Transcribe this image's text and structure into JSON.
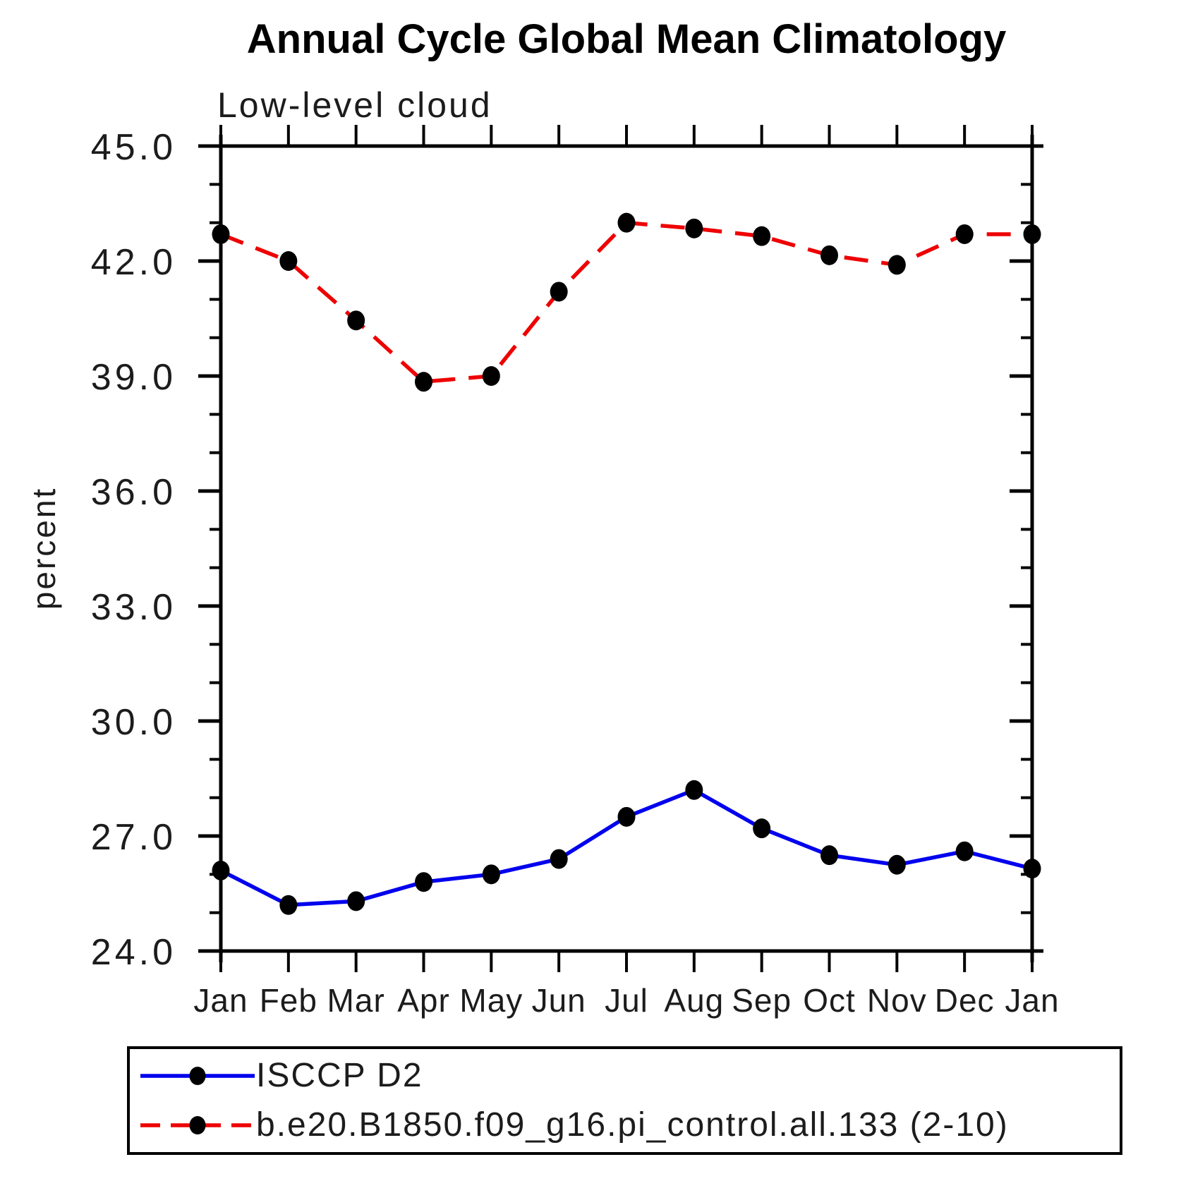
{
  "chart_data": {
    "type": "line",
    "title": "Annual Cycle Global Mean Climatology",
    "subtitle": "Low-level cloud",
    "xlabel": "",
    "ylabel": "percent",
    "x_tick_labels": [
      "Jan",
      "Feb",
      "Mar",
      "Apr",
      "May",
      "Jun",
      "Jul",
      "Aug",
      "Sep",
      "Oct",
      "Nov",
      "Dec",
      "Jan"
    ],
    "ylim": [
      24.0,
      45.0
    ],
    "y_major_ticks": [
      24.0,
      27.0,
      30.0,
      33.0,
      36.0,
      39.0,
      42.0,
      45.0
    ],
    "y_major_tick_labels": [
      "24.0",
      "27.0",
      "30.0",
      "33.0",
      "36.0",
      "39.0",
      "42.0",
      "45.0"
    ],
    "y_minor_tick_interval": 1.0,
    "grid": false,
    "legend_position": "bottom-left-box",
    "axis_color": "#000000",
    "marker_color": "#000000",
    "series": [
      {
        "name": "ISCCP D2",
        "color": "#0000ee",
        "line_style": "solid",
        "marker": "circle",
        "values": [
          26.1,
          25.2,
          25.3,
          25.8,
          26.0,
          26.4,
          27.5,
          28.2,
          27.2,
          26.5,
          26.25,
          26.6,
          26.15
        ]
      },
      {
        "name": "b.e20.B1850.f09_g16.pi_control.all.133 (2-10)",
        "color": "#ee0000",
        "line_style": "dashed",
        "marker": "circle",
        "values": [
          42.7,
          42.0,
          40.45,
          38.85,
          39.0,
          41.2,
          43.0,
          42.85,
          42.65,
          42.15,
          41.9,
          42.7,
          42.7
        ]
      }
    ]
  }
}
